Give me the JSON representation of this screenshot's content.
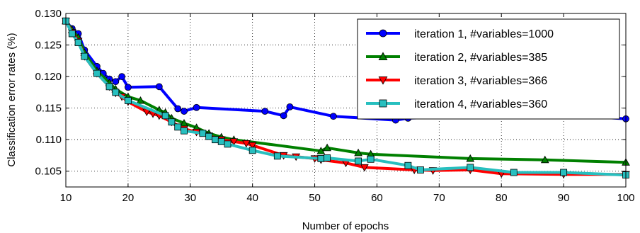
{
  "chart_data": {
    "type": "line",
    "xlabel": "Number of epochs",
    "ylabel": "Classification error rates (%)",
    "xlim": [
      10,
      100
    ],
    "ylim": [
      0.1025,
      0.13
    ],
    "xticks": [
      10,
      20,
      30,
      40,
      50,
      60,
      70,
      80,
      90,
      100
    ],
    "yticks": [
      0.105,
      0.11,
      0.115,
      0.12,
      0.125,
      0.13
    ],
    "xtick_labels": [
      "10",
      "20",
      "30",
      "40",
      "50",
      "60",
      "70",
      "80",
      "90",
      "100"
    ],
    "ytick_labels": [
      "0.105",
      "0.110",
      "0.115",
      "0.120",
      "0.125",
      "0.130"
    ],
    "grid": true,
    "legend_position": "top-right",
    "series": [
      {
        "name": "iteration 1, #variables=1000",
        "color": "#0000ff",
        "marker": "circle",
        "x": [
          10,
          11,
          12,
          13,
          15,
          16,
          17,
          18,
          19,
          20,
          25,
          28,
          29,
          31,
          42,
          45,
          46,
          53,
          63,
          65,
          87,
          100
        ],
        "y": [
          0.1288,
          0.1276,
          0.1268,
          0.1242,
          0.1216,
          0.1205,
          0.1196,
          0.1192,
          0.12,
          0.1183,
          0.1184,
          0.1149,
          0.1145,
          0.1151,
          0.1145,
          0.1138,
          0.1152,
          0.1137,
          0.1131,
          0.1134,
          0.1141,
          0.1133
        ]
      },
      {
        "name": "iteration 2, #variables=385",
        "color": "#008000",
        "marker": "triangle-up",
        "x": [
          10,
          11,
          12,
          13,
          15,
          17,
          18,
          20,
          22,
          25,
          26,
          27,
          29,
          31,
          33,
          35,
          37,
          51,
          52,
          57,
          59,
          75,
          87,
          100
        ],
        "y": [
          0.1288,
          0.1274,
          0.1262,
          0.1238,
          0.1209,
          0.119,
          0.118,
          0.1168,
          0.1162,
          0.1147,
          0.1143,
          0.1134,
          0.1126,
          0.1119,
          0.111,
          0.1104,
          0.11,
          0.1082,
          0.1087,
          0.1079,
          0.1077,
          0.107,
          0.1068,
          0.1064
        ]
      },
      {
        "name": "iteration 3, #variables=366",
        "color": "#ff0000",
        "marker": "triangle-down",
        "x": [
          10,
          11,
          12,
          13,
          15,
          17,
          18,
          19,
          20,
          23,
          24,
          25,
          27,
          29,
          31,
          33,
          35,
          37,
          39,
          40,
          45,
          47,
          50,
          51,
          55,
          58,
          66,
          69,
          75,
          80,
          90,
          100
        ],
        "y": [
          0.1288,
          0.127,
          0.1256,
          0.1232,
          0.1205,
          0.1184,
          0.1174,
          0.1168,
          0.116,
          0.1144,
          0.1141,
          0.1138,
          0.1128,
          0.1117,
          0.1112,
          0.1106,
          0.11,
          0.1097,
          0.1094,
          0.1091,
          0.1075,
          0.1073,
          0.107,
          0.1068,
          0.1063,
          0.1056,
          0.1052,
          0.1051,
          0.1052,
          0.1046,
          0.1045,
          0.1045
        ]
      },
      {
        "name": "iteration 4, #variables=360",
        "color": "#27bfbf",
        "marker": "square",
        "x": [
          10,
          11,
          12,
          13,
          15,
          17,
          18,
          20,
          26,
          27,
          28,
          29,
          32,
          33,
          34,
          35,
          36,
          40,
          44,
          51,
          52,
          57,
          59,
          65,
          67,
          75,
          82,
          90,
          100
        ],
        "y": [
          0.1288,
          0.1268,
          0.1254,
          0.1232,
          0.1205,
          0.1184,
          0.1175,
          0.1162,
          0.1138,
          0.1128,
          0.112,
          0.1114,
          0.111,
          0.1105,
          0.11,
          0.1097,
          0.1093,
          0.1083,
          0.1074,
          0.107,
          0.1071,
          0.1066,
          0.1069,
          0.1059,
          0.1052,
          0.1056,
          0.1048,
          0.1048,
          0.1044
        ]
      }
    ]
  }
}
